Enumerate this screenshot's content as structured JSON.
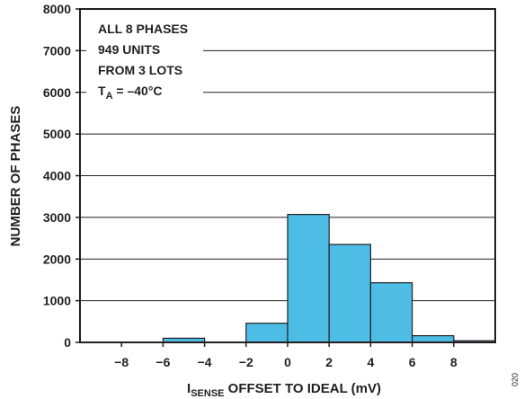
{
  "chart_data": {
    "type": "bar",
    "bin_width": 2,
    "bins": [
      {
        "x": -7,
        "value": 0
      },
      {
        "x": -5,
        "value": 100
      },
      {
        "x": -3,
        "value": 0
      },
      {
        "x": -1,
        "value": 460
      },
      {
        "x": 1,
        "value": 3070
      },
      {
        "x": 3,
        "value": 2350
      },
      {
        "x": 5,
        "value": 1430
      },
      {
        "x": 7,
        "value": 160
      },
      {
        "x": 9,
        "value": 40
      }
    ],
    "xlim": [
      -10,
      10
    ],
    "ylim": [
      0,
      8000
    ],
    "x_ticks": [
      -8,
      -6,
      -4,
      -2,
      0,
      2,
      4,
      6,
      8
    ],
    "x_tick_labels": [
      "−8",
      "−6",
      "−4",
      "−2",
      "0",
      "2",
      "4",
      "6",
      "8"
    ],
    "y_ticks": [
      0,
      1000,
      2000,
      3000,
      4000,
      5000,
      6000,
      7000,
      8000
    ],
    "y_tick_labels": [
      "0",
      "1000",
      "2000",
      "3000",
      "4000",
      "5000",
      "6000",
      "7000",
      "8000"
    ],
    "ylabel": "NUMBER OF PHASES",
    "xlabel_parts": {
      "i": "I",
      "sub": "SENSE",
      "rest": " OFFSET TO IDEAL (mV)"
    },
    "annotation_lines": [
      "ALL 8 PHASES",
      "949 UNITS",
      "FROM 3 LOTS"
    ],
    "annotation_temp": {
      "t": "T",
      "sub": "A",
      "rest": " = –40°C"
    },
    "grid": "horizontal",
    "bar_color": "#4dbde6",
    "figure_id": "020"
  }
}
